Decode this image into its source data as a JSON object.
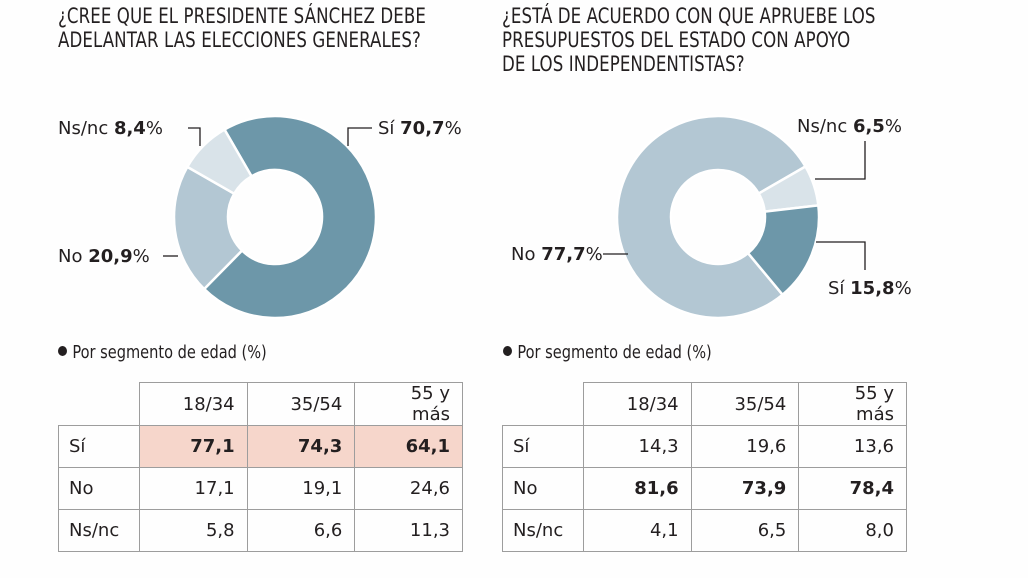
{
  "colors": {
    "si_dark": "#6d97a9",
    "no_mid": "#b3c7d3",
    "nsnc_light": "#d9e3e9",
    "highlight_row": "#f6d6cb",
    "text": "#231f20",
    "border": "#9d9d9d"
  },
  "chart_data": [
    {
      "type": "pie",
      "variant": "donut",
      "title": "¿Cree que el presidente Sánchez debe adelantar las elecciones generales?",
      "slices": [
        {
          "label": "Sí",
          "value": 70.7,
          "display": "70,7%",
          "color": "#6d97a9"
        },
        {
          "label": "No",
          "value": 20.9,
          "display": "20,9%",
          "color": "#b3c7d3"
        },
        {
          "label": "Ns/nc",
          "value": 8.4,
          "display": "8,4%",
          "color": "#d9e3e9"
        }
      ],
      "table": {
        "subtitle": "Por segmento de edad (%)",
        "columns": [
          "18/34",
          "35/54",
          "55 y más"
        ],
        "rows": [
          {
            "label": "Sí",
            "values": [
              "77,1",
              "74,3",
              "64,1"
            ],
            "bold": true,
            "highlight": true
          },
          {
            "label": "No",
            "values": [
              "17,1",
              "19,1",
              "24,6"
            ],
            "bold": false,
            "highlight": false
          },
          {
            "label": "Ns/nc",
            "values": [
              "5,8",
              "6,6",
              "11,3"
            ],
            "bold": false,
            "highlight": false
          }
        ]
      }
    },
    {
      "type": "pie",
      "variant": "donut",
      "title": "¿Está de acuerdo con que apruebe los presupuestos del estado con apoyo de los independentistas?",
      "slices": [
        {
          "label": "Sí",
          "value": 15.8,
          "display": "15,8%",
          "color": "#6d97a9"
        },
        {
          "label": "No",
          "value": 77.7,
          "display": "77,7%",
          "color": "#b3c7d3"
        },
        {
          "label": "Ns/nc",
          "value": 6.5,
          "display": "6,5%",
          "color": "#d9e3e9"
        }
      ],
      "table": {
        "subtitle": "Por segmento de edad (%)",
        "columns": [
          "18/34",
          "35/54",
          "55 y más"
        ],
        "rows": [
          {
            "label": "Sí",
            "values": [
              "14,3",
              "19,6",
              "13,6"
            ],
            "bold": false,
            "highlight": false
          },
          {
            "label": "No",
            "values": [
              "81,6",
              "73,9",
              "78,4"
            ],
            "bold": true,
            "highlight": false
          },
          {
            "label": "Ns/nc",
            "values": [
              "4,1",
              "6,5",
              "8,0"
            ],
            "bold": false,
            "highlight": false
          }
        ]
      }
    }
  ],
  "panels": [
    {
      "title_lines": "¿Cree que el presidente Sánchez debe\nadelantar las elecciones generales?"
    },
    {
      "title_lines": "¿Está de acuerdo con que apruebe los\npresupuestos del estado con apoyo\nde los independentistas?"
    }
  ]
}
